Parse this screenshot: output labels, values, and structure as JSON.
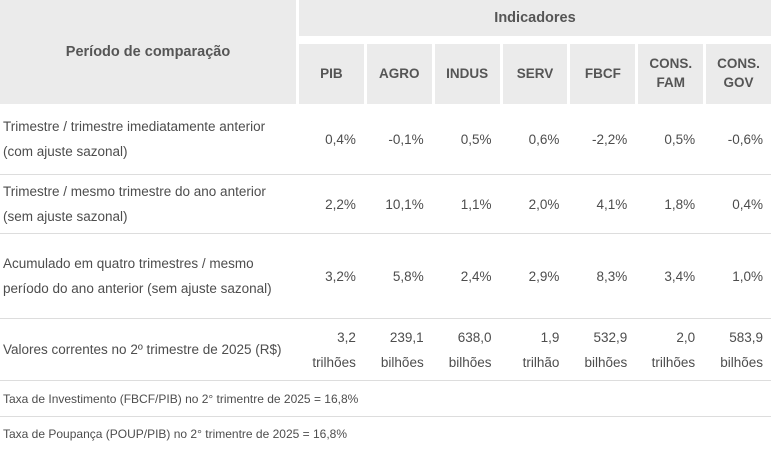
{
  "chart_data": {
    "type": "table",
    "corner_header": "Período de comparação",
    "group_header": "Indicadores",
    "columns": [
      "PIB",
      "AGRO",
      "INDUS",
      "SERV",
      "FBCF",
      "CONS. FAM",
      "CONS. GOV"
    ],
    "rows": [
      {
        "label": "Trimestre / trimestre imediatamente anterior (com ajuste sazonal)",
        "values": [
          "0,4%",
          "-0,1%",
          "0,5%",
          "0,6%",
          "-2,2%",
          "0,5%",
          "-0,6%"
        ]
      },
      {
        "label": "Trimestre / mesmo trimestre do ano anterior (sem ajuste sazonal)",
        "values": [
          "2,2%",
          "10,1%",
          "1,1%",
          "2,0%",
          "4,1%",
          "1,8%",
          "0,4%"
        ]
      },
      {
        "label": "Acumulado em quatro trimestres / mesmo período do ano anterior (sem ajuste sazonal)",
        "values": [
          "3,2%",
          "5,8%",
          "2,4%",
          "2,9%",
          "8,3%",
          "3,4%",
          "1,0%"
        ]
      },
      {
        "label": "Valores correntes no 2º trimestre de 2025 (R$)",
        "values": [
          {
            "v": "3,2",
            "u": "trilhões"
          },
          {
            "v": "239,1",
            "u": "bilhões"
          },
          {
            "v": "638,0",
            "u": "bilhões"
          },
          {
            "v": "1,9",
            "u": "trilhão"
          },
          {
            "v": "532,9",
            "u": "bilhões"
          },
          {
            "v": "2,0",
            "u": "trilhões"
          },
          {
            "v": "583,9",
            "u": "bilhões"
          }
        ]
      }
    ],
    "footnotes": [
      "Taxa de Investimento (FBCF/PIB) no 2° trimentre de 2025 = 16,8%",
      "Taxa de Poupança (POUP/PIB) no 2° trimentre de 2025 = 16,8%"
    ],
    "colors": {
      "header_bg": "#ebebeb",
      "header_text": "#555555",
      "body_text": "#4d4d4d",
      "divider": "#dddddd"
    }
  }
}
